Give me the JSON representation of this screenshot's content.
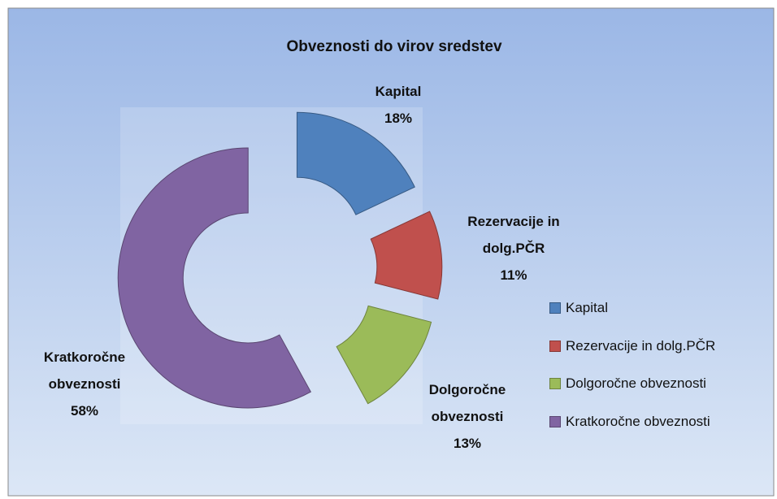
{
  "chart_data": {
    "type": "doughnut",
    "title": "Obveznosti do virov sredstev",
    "categories": [
      "Kapital",
      "Rezervacije in dolg.PČR",
      "Dolgoročne obveznosti",
      "Kratkoročne obveznosti"
    ],
    "values": [
      18,
      11,
      13,
      58
    ],
    "value_labels": [
      "18%",
      "11%",
      "13%",
      "58%"
    ],
    "colors": [
      "#4f81bd",
      "#c0504d",
      "#9bbb59",
      "#8064a2"
    ],
    "legend": "right"
  }
}
